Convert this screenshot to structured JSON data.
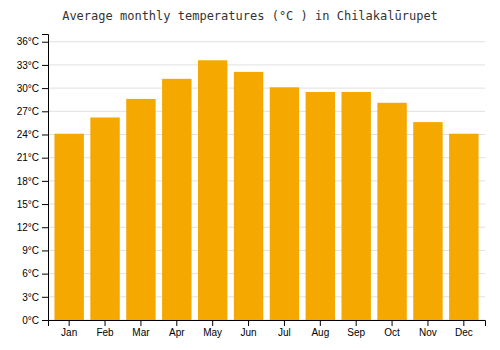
{
  "chart_data": {
    "type": "bar",
    "title": "Average monthly temperatures (°C ) in Chilakalūrupet",
    "categories": [
      "Jan",
      "Feb",
      "Mar",
      "Apr",
      "May",
      "Jun",
      "Jul",
      "Aug",
      "Sep",
      "Oct",
      "Nov",
      "Dec"
    ],
    "values": [
      24.1,
      26.2,
      28.6,
      31.2,
      33.6,
      32.1,
      30.1,
      29.5,
      29.5,
      28.1,
      25.6,
      24.1
    ],
    "color": "#F5A800",
    "ylim": [
      0,
      37
    ],
    "yticks": [
      {
        "value": 0,
        "label": "0°C"
      },
      {
        "value": 3,
        "label": "3°C"
      },
      {
        "value": 6,
        "label": "6°C"
      },
      {
        "value": 9,
        "label": "9°C"
      },
      {
        "value": 12,
        "label": "12°C"
      },
      {
        "value": 15,
        "label": "15°C"
      },
      {
        "value": 18,
        "label": "18°C"
      },
      {
        "value": 21,
        "label": "21°C"
      },
      {
        "value": 24,
        "label": "24°C"
      },
      {
        "value": 27,
        "label": "27°C"
      },
      {
        "value": 30,
        "label": "30°C"
      },
      {
        "value": 33,
        "label": "33°C"
      },
      {
        "value": 36,
        "label": "36°C"
      }
    ],
    "grid": true
  }
}
